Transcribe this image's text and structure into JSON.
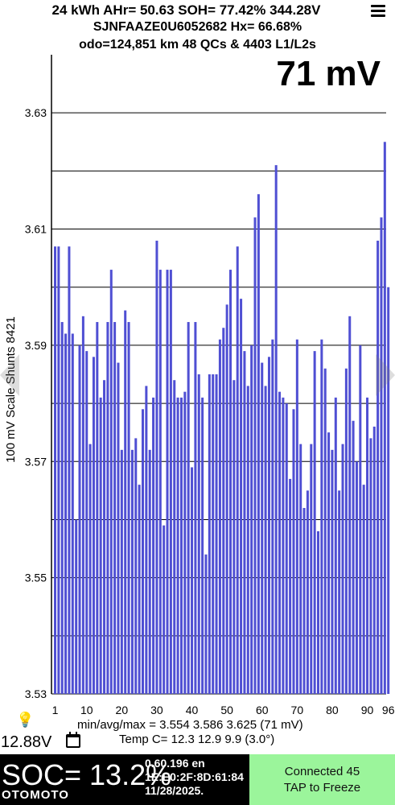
{
  "header": {
    "line1": "24 kWh  AHr= 50.63  SOH= 77.42%   344.28V",
    "line2": "SJNFAAZE0U6052682   Hx= 66.68%",
    "line3": "odo=124,851 km 48 QCs & 4403 L1/L2s",
    "menu_icon": "hamburger-menu-icon"
  },
  "spread_label": "71 mV",
  "chart_data": {
    "type": "bar",
    "title": "",
    "xlabel": "",
    "ylabel": "100 mV Scale  Shunts 8421",
    "ylim": [
      3.53,
      3.64
    ],
    "yticks": [
      "3.53",
      "3.55",
      "3.57",
      "3.59",
      "3.61",
      "3.63"
    ],
    "xticks": [
      "1",
      "10",
      "20",
      "30",
      "40",
      "50",
      "60",
      "70",
      "80",
      "90",
      "96"
    ],
    "bar_color": "#4f4fd3",
    "grid": true,
    "x": [
      1,
      2,
      3,
      4,
      5,
      6,
      7,
      8,
      9,
      10,
      11,
      12,
      13,
      14,
      15,
      16,
      17,
      18,
      19,
      20,
      21,
      22,
      23,
      24,
      25,
      26,
      27,
      28,
      29,
      30,
      31,
      32,
      33,
      34,
      35,
      36,
      37,
      38,
      39,
      40,
      41,
      42,
      43,
      44,
      45,
      46,
      47,
      48,
      49,
      50,
      51,
      52,
      53,
      54,
      55,
      56,
      57,
      58,
      59,
      60,
      61,
      62,
      63,
      64,
      65,
      66,
      67,
      68,
      69,
      70,
      71,
      72,
      73,
      74,
      75,
      76,
      77,
      78,
      79,
      80,
      81,
      82,
      83,
      84,
      85,
      86,
      87,
      88,
      89,
      90,
      91,
      92,
      93,
      94,
      95,
      96
    ],
    "values": [
      3.607,
      3.607,
      3.594,
      3.592,
      3.607,
      3.592,
      3.56,
      3.59,
      3.595,
      3.589,
      3.573,
      3.588,
      3.594,
      3.581,
      3.584,
      3.594,
      3.603,
      3.594,
      3.587,
      3.572,
      3.596,
      3.594,
      3.572,
      3.574,
      3.566,
      3.579,
      3.583,
      3.572,
      3.581,
      3.608,
      3.603,
      3.559,
      3.603,
      3.603,
      3.584,
      3.581,
      3.581,
      3.582,
      3.594,
      3.569,
      3.594,
      3.585,
      3.581,
      3.554,
      3.585,
      3.585,
      3.585,
      3.591,
      3.593,
      3.597,
      3.603,
      3.584,
      3.607,
      3.598,
      3.589,
      3.583,
      3.59,
      3.612,
      3.616,
      3.587,
      3.583,
      3.588,
      3.591,
      3.621,
      3.582,
      3.581,
      3.58,
      3.567,
      3.579,
      3.591,
      3.573,
      3.562,
      3.565,
      3.573,
      3.589,
      3.558,
      3.591,
      3.586,
      3.575,
      3.572,
      3.581,
      3.565,
      3.573,
      3.586,
      3.595,
      3.577,
      3.57,
      3.59,
      3.566,
      3.581,
      3.574,
      3.576,
      3.608,
      3.612,
      3.625,
      3.6
    ]
  },
  "stats": {
    "min_avg_max": "min/avg/max = 3.554 3.586 3.625  (71 mV)",
    "temp": "Temp C= 12.3  12.9  9.9  (3.0°)"
  },
  "voltage": "12.88V",
  "bulb_icon": "lightbulb-icon",
  "calendar_icon": "calendar-icon",
  "bottom": {
    "soc": "SOC= 13.2%",
    "info_line1": "0.60.196 en",
    "info_line2": "1E:E0:2F:8D:61:84",
    "info_line3": "11/28/2025.",
    "connect_line1": "Connected 45",
    "connect_line2": "TAP to Freeze",
    "watermark": "OTOMOTO"
  }
}
